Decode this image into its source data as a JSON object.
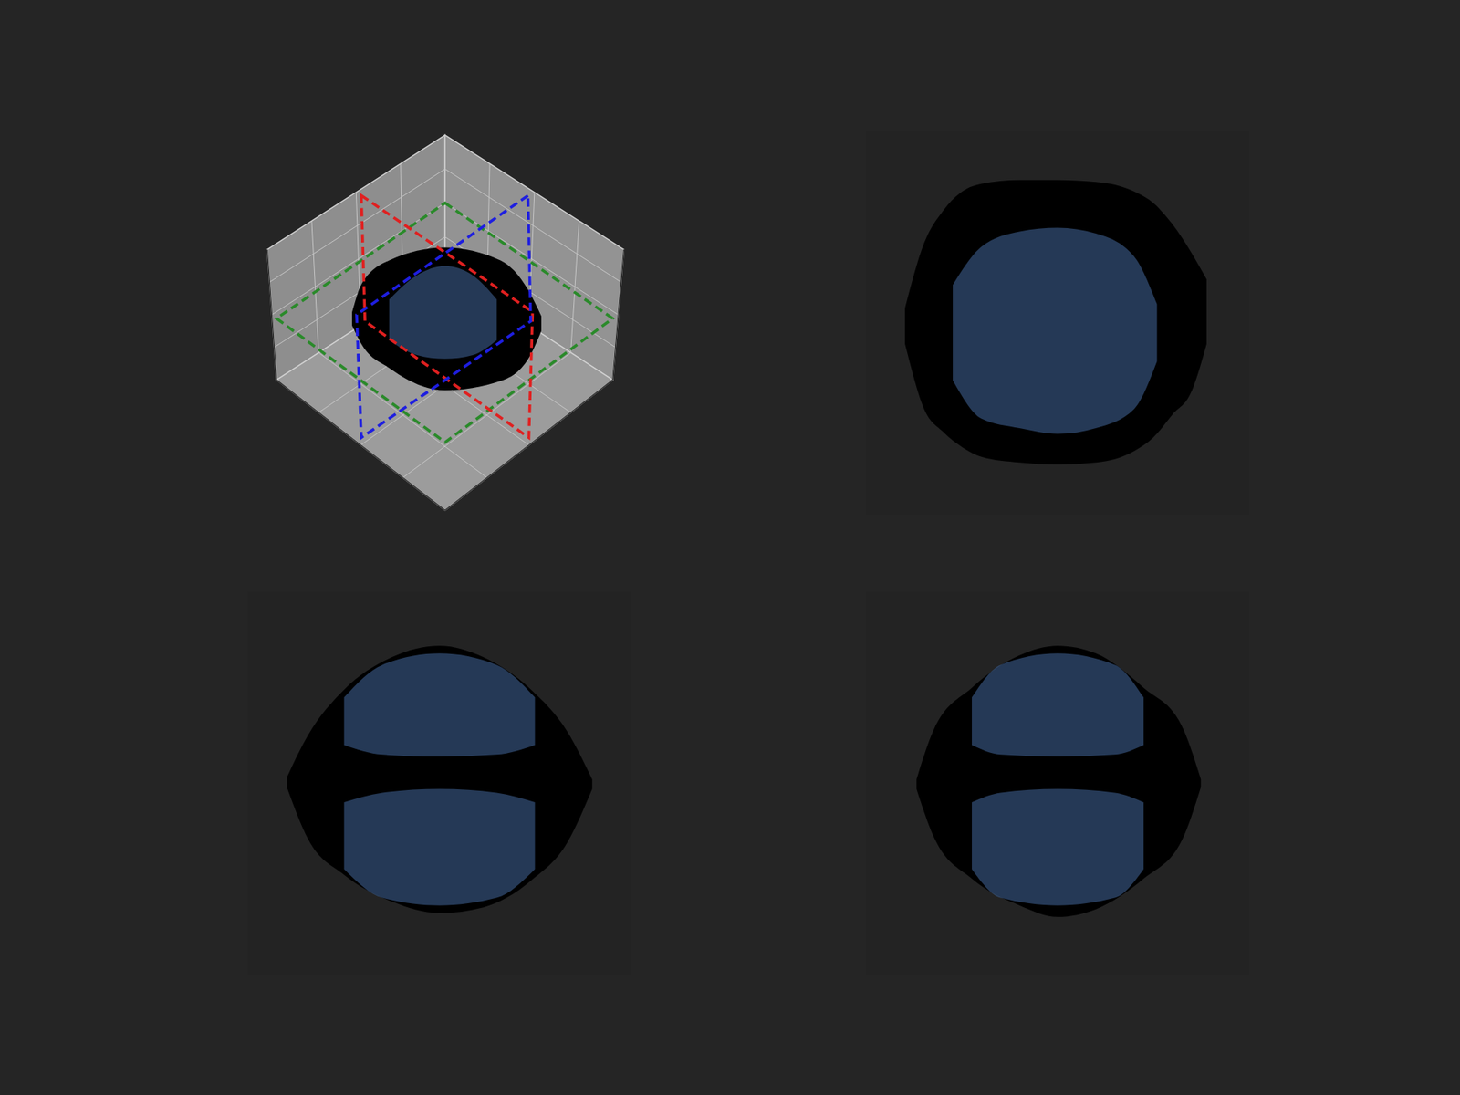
{
  "chart_data": [
    {
      "type": "area",
      "tick_labels": false,
      "xlim": [
        -1,
        1
      ],
      "ylim": [
        -1,
        1
      ],
      "series": [
        {
          "color": "#000000",
          "x": [
            -0.5,
            -0.45,
            -0.3,
            0,
            0.3,
            0.45,
            0.52
          ],
          "values": [
            [
              -0.02,
              0.05
            ],
            [
              -0.12,
              0.2
            ],
            [
              -0.25,
              0.33
            ],
            [
              -0.37,
              0.4
            ],
            [
              -0.32,
              0.33
            ],
            [
              -0.2,
              0.17
            ],
            [
              -0.05,
              0.03
            ]
          ]
        },
        {
          "color": "#3d5f8f",
          "x": [
            -0.3,
            -0.15,
            0,
            0.15,
            0.28
          ],
          "values": [
            [
              -0.1,
              0.12
            ],
            [
              -0.18,
              0.25
            ],
            [
              -0.2,
              0.3
            ],
            [
              -0.18,
              0.25
            ],
            [
              -0.1,
              0.12
            ]
          ]
        }
      ]
    },
    {
      "type": "area",
      "tick_labels": false,
      "xlim": [
        -1,
        1
      ],
      "ylim": [
        -1,
        1
      ],
      "series": [
        {
          "color": "#000000",
          "x": [
            -0.8,
            -0.7,
            -0.6,
            -0.5,
            -0.4,
            -0.2,
            0,
            0.2,
            0.4,
            0.5,
            0.6,
            0.7,
            0.78
          ],
          "values": [
            [
              -0.11,
              0.08
            ],
            [
              -0.45,
              0.42
            ],
            [
              -0.57,
              0.59
            ],
            [
              -0.65,
              0.69
            ],
            [
              -0.7,
              0.73
            ],
            [
              -0.73,
              0.75
            ],
            [
              -0.74,
              0.75
            ],
            [
              -0.73,
              0.74
            ],
            [
              -0.67,
              0.69
            ],
            [
              -0.6,
              0.63
            ],
            [
              -0.48,
              0.52
            ],
            [
              -0.36,
              0.37
            ],
            [
              -0.11,
              0.23
            ]
          ]
        },
        {
          "color": "#3d5f8f",
          "x": [
            -0.55,
            -0.4,
            -0.2,
            0,
            0.2,
            0.4,
            0.52
          ],
          "values": [
            [
              -0.3,
              0.2
            ],
            [
              -0.5,
              0.4
            ],
            [
              -0.55,
              0.48
            ],
            [
              -0.58,
              0.5
            ],
            [
              -0.55,
              0.47
            ],
            [
              -0.45,
              0.35
            ],
            [
              -0.2,
              0.1
            ]
          ]
        }
      ]
    },
    {
      "type": "area",
      "tick_labels": false,
      "xlim": [
        -1,
        1
      ],
      "ylim": [
        -1,
        1
      ],
      "series": [
        {
          "color": "#000000",
          "x": [
            -0.8,
            -0.69,
            -0.5,
            -0.25,
            0,
            0.23,
            0.48,
            0.67,
            0.8
          ],
          "values": [
            [
              -0.02,
              0.03
            ],
            [
              -0.29,
              0.25
            ],
            [
              -0.48,
              0.49
            ],
            [
              -0.62,
              0.66
            ],
            [
              -0.68,
              0.72
            ],
            [
              -0.65,
              0.66
            ],
            [
              -0.51,
              0.49
            ],
            [
              -0.31,
              0.27
            ],
            [
              -0.03,
              0.02
            ]
          ]
        },
        {
          "color": "#3d5f8f",
          "x": [
            -0.5,
            -0.3,
            0,
            0.3,
            0.5
          ],
          "values": [
            [
              0.2,
              0.45
            ],
            [
              0.15,
              0.62
            ],
            [
              0.14,
              0.68
            ],
            [
              0.15,
              0.62
            ],
            [
              0.2,
              0.45
            ]
          ]
        },
        {
          "color": "#3d5f8f",
          "x": [
            -0.5,
            -0.3,
            0,
            0.3,
            0.5
          ],
          "values": [
            [
              -0.45,
              -0.1
            ],
            [
              -0.6,
              -0.05
            ],
            [
              -0.64,
              -0.03
            ],
            [
              -0.6,
              -0.05
            ],
            [
              -0.45,
              -0.1
            ]
          ]
        }
      ]
    },
    {
      "type": "area",
      "tick_labels": false,
      "xlim": [
        -1,
        1
      ],
      "ylim": [
        -1,
        1
      ],
      "series": [
        {
          "color": "#000000",
          "x": [
            -0.74,
            -0.65,
            -0.45,
            -0.2,
            0,
            0.2,
            0.45,
            0.65,
            0.75
          ],
          "values": [
            [
              -0.03,
              0.02
            ],
            [
              -0.28,
              0.28
            ],
            [
              -0.5,
              0.5
            ],
            [
              -0.64,
              0.67
            ],
            [
              -0.7,
              0.72
            ],
            [
              -0.66,
              0.68
            ],
            [
              -0.5,
              0.5
            ],
            [
              -0.3,
              0.3
            ],
            [
              -0.02,
              0.02
            ]
          ]
        },
        {
          "color": "#3d5f8f",
          "x": [
            -0.45,
            -0.3,
            0,
            0.3,
            0.45
          ],
          "values": [
            [
              0.2,
              0.45
            ],
            [
              0.15,
              0.62
            ],
            [
              0.14,
              0.68
            ],
            [
              0.15,
              0.62
            ],
            [
              0.2,
              0.45
            ]
          ]
        },
        {
          "color": "#3d5f8f",
          "x": [
            -0.45,
            -0.3,
            0,
            0.3,
            0.45
          ],
          "values": [
            [
              -0.45,
              -0.1
            ],
            [
              -0.6,
              -0.05
            ],
            [
              -0.64,
              -0.03
            ],
            [
              -0.6,
              -0.05
            ],
            [
              -0.45,
              -0.1
            ]
          ]
        }
      ]
    }
  ]
}
